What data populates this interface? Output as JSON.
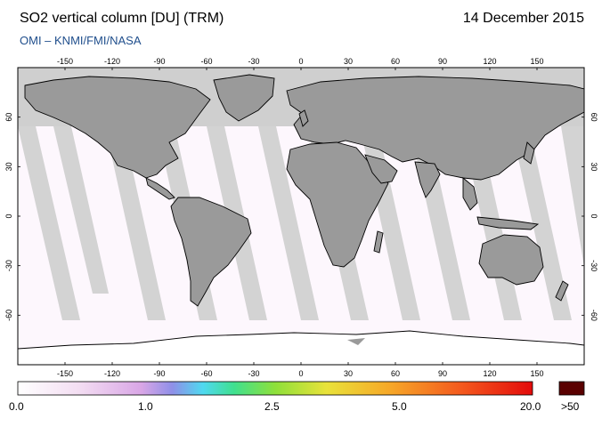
{
  "header": {
    "title": "SO2 vertical column [DU] (TRM)",
    "date": "14 December 2015",
    "credit": "OMI  –  KNMI/FMI/NASA"
  },
  "map": {
    "lon_ticks": [
      "-150",
      "-120",
      "-90",
      "-60",
      "-30",
      "0",
      "30",
      "60",
      "90",
      "120",
      "150"
    ],
    "lat_ticks": [
      "60",
      "30",
      "0",
      "-30",
      "-60"
    ],
    "colors": {
      "ocean": "#ffffff",
      "land": "#9a9a9a",
      "swath_gap": "#d3d3d3",
      "polar_night": "#cfcfcf"
    }
  },
  "colorbar": {
    "labels": [
      "0.0",
      "1.0",
      "2.5",
      "5.0",
      "20.0"
    ],
    "overflow_label": ">50",
    "overflow_color": "#5a0000"
  }
}
